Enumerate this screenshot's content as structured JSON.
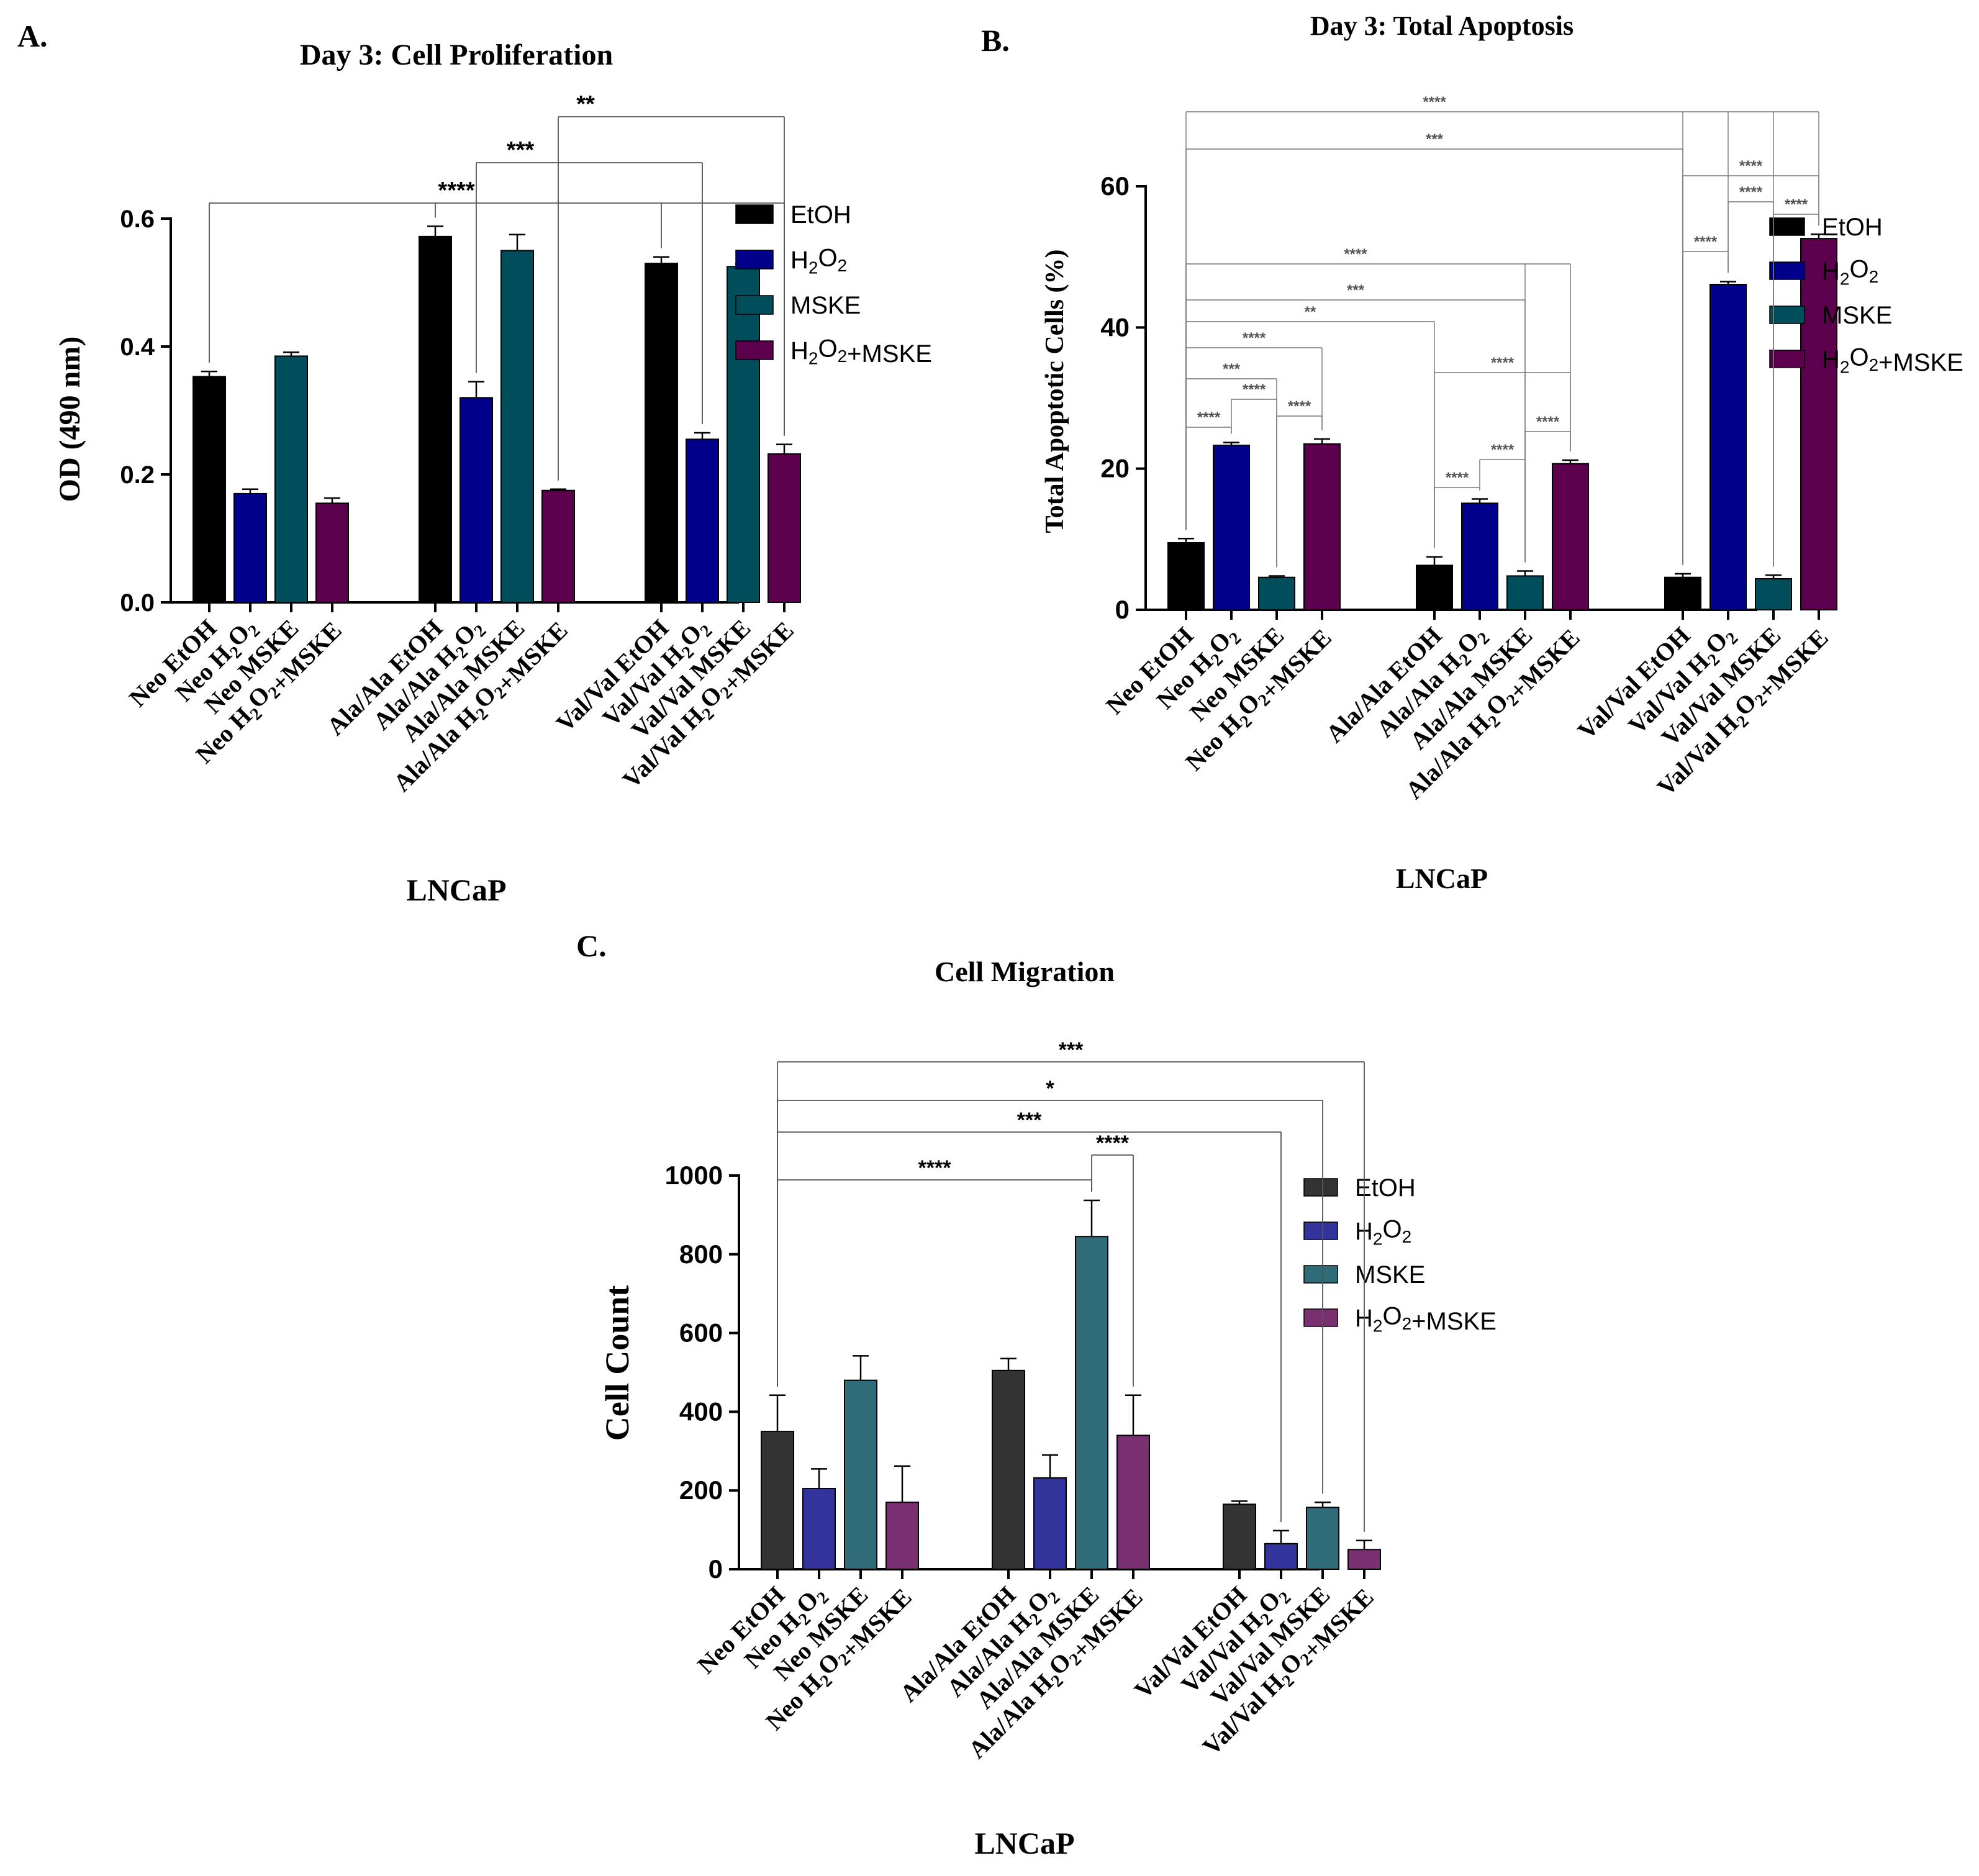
{
  "figure": {
    "palette": {
      "etoh": "#000000",
      "h2o2": "#00008b",
      "mske": "#004d5c",
      "h2o2_mske": "#5c004d",
      "etoh_c": "#333333",
      "h2o2_c": "#33339c",
      "mske_c": "#2f6b78",
      "h2o2_mske_c": "#7a2f70"
    }
  },
  "chart_data": [
    {
      "panel": "A.",
      "type": "bar",
      "title": "Day 3: Cell Proliferation",
      "ylabel": "OD  (490 nm)",
      "xlabel": "LNCaP",
      "ylim": [
        0,
        0.6
      ],
      "yticks": [
        "0.0",
        "0.2",
        "0.4",
        "0.6"
      ],
      "legend": [
        "EtOH",
        "H2O2",
        "MSKE",
        "H2O2+MSKE"
      ],
      "legend_position": "right",
      "categories": [
        "Neo EtOH",
        "Neo H2O2",
        "Neo MSKE",
        "Neo H2O2+MSKE",
        "Ala/Ala EtOH",
        "Ala/Ala H2O2",
        "Ala/Ala MSKE",
        "Ala/Ala H2O2+MSKE",
        "Val/Val EtOH",
        "Val/Val H2O2",
        "Val/Val MSKE",
        "Val/Val H2O2+MSKE"
      ],
      "series_index": [
        0,
        1,
        2,
        3,
        0,
        1,
        2,
        3,
        0,
        1,
        2,
        3
      ],
      "values": [
        0.353,
        0.17,
        0.385,
        0.155,
        0.572,
        0.32,
        0.55,
        0.175,
        0.53,
        0.255,
        0.525,
        0.232
      ],
      "errors": [
        0.008,
        0.007,
        0.006,
        0.008,
        0.016,
        0.025,
        0.025,
        0.002,
        0.01,
        0.01,
        0.004,
        0.015
      ],
      "significance": [
        {
          "label": "****",
          "from": 0,
          "to": [
            4,
            8,
            11
          ]
        },
        {
          "label": "***",
          "from": 5,
          "to": [
            9
          ]
        },
        {
          "label": "**",
          "from": 7,
          "to": [
            11
          ]
        }
      ]
    },
    {
      "panel": "B.",
      "type": "bar",
      "title": "Day 3: Total Apoptosis",
      "ylabel": "Total Apoptotic Cells  (%)",
      "xlabel": "LNCaP",
      "ylim": [
        0,
        60
      ],
      "yticks": [
        "0",
        "20",
        "40",
        "60"
      ],
      "legend": [
        "EtOH",
        "H2O2",
        "MSKE",
        "H2O2+MSKE"
      ],
      "legend_position": "right",
      "categories": [
        "Neo EtOH",
        "Neo H2O2",
        "Neo MSKE",
        "Neo H2O2+MSKE",
        "Ala/Ala EtOH",
        "Ala/Ala H2O2",
        "Ala/Ala MSKE",
        "Ala/Ala H2O2+MSKE",
        "Val/Val EtOH",
        "Val/Val H2O2",
        "Val/Val MSKE",
        "Val/Val H2O2+MSKE"
      ],
      "series_index": [
        0,
        1,
        2,
        3,
        0,
        1,
        2,
        3,
        0,
        1,
        2,
        3
      ],
      "values": [
        9.5,
        23.3,
        4.6,
        23.5,
        6.3,
        15.1,
        4.8,
        20.7,
        4.6,
        46.1,
        4.4,
        52.6
      ],
      "errors": [
        0.6,
        0.4,
        0.2,
        0.7,
        1.2,
        0.6,
        0.7,
        0.5,
        0.5,
        0.4,
        0.5,
        0.6
      ],
      "significance": [
        {
          "label": "****",
          "from": 0,
          "to": [
            8,
            9,
            10,
            11
          ]
        },
        {
          "label": "***",
          "from": 0,
          "to": [
            8
          ]
        },
        {
          "label": "****",
          "from": 8,
          "to": [
            11
          ]
        },
        {
          "label": "****",
          "from": 9,
          "to": [
            10
          ]
        },
        {
          "label": "****",
          "from": 10,
          "to": [
            11
          ]
        },
        {
          "label": "****",
          "from": 8,
          "to": [
            9
          ]
        },
        {
          "label": "****",
          "from": 0,
          "to": [
            6,
            7
          ]
        },
        {
          "label": "***",
          "from": 0,
          "to": [
            6
          ]
        },
        {
          "label": "**",
          "from": 0,
          "to": [
            4
          ]
        },
        {
          "label": "****",
          "from": 0,
          "to": [
            3
          ]
        },
        {
          "label": "****",
          "from": 4,
          "to": [
            7
          ]
        },
        {
          "label": "***",
          "from": 0,
          "to": [
            2
          ]
        },
        {
          "label": "****",
          "from": 1,
          "to": [
            2
          ]
        },
        {
          "label": "****",
          "from": 2,
          "to": [
            3
          ]
        },
        {
          "label": "****",
          "from": 0,
          "to": [
            1
          ]
        },
        {
          "label": "****",
          "from": 6,
          "to": [
            7
          ]
        },
        {
          "label": "****",
          "from": 5,
          "to": [
            6
          ]
        },
        {
          "label": "****",
          "from": 4,
          "to": [
            5
          ]
        }
      ]
    },
    {
      "panel": "C.",
      "type": "bar",
      "title": "Cell Migration",
      "ylabel": "Cell Count",
      "xlabel": "LNCaP",
      "ylim": [
        0,
        1000
      ],
      "yticks": [
        "0",
        "200",
        "400",
        "600",
        "800",
        "1000"
      ],
      "legend": [
        "EtOH",
        "H2O2",
        "MSKE",
        "H2O2+MSKE"
      ],
      "legend_position": "right",
      "categories": [
        "Neo EtOH",
        "Neo H2O2",
        "Neo MSKE",
        "Neo H2O2+MSKE",
        "Ala/Ala EtOH",
        "Ala/Ala H2O2",
        "Ala/Ala MSKE",
        "Ala/Ala H2O2+MSKE",
        "Val/Val EtOH",
        "Val/Val H2O2",
        "Val/Val MSKE",
        "Val/Val H2O2+MSKE"
      ],
      "series_index": [
        0,
        1,
        2,
        3,
        0,
        1,
        2,
        3,
        0,
        1,
        2,
        3
      ],
      "values": [
        350,
        205,
        480,
        170,
        505,
        232,
        845,
        340,
        165,
        65,
        157,
        50
      ],
      "errors": [
        92,
        50,
        62,
        92,
        30,
        58,
        92,
        102,
        8,
        33,
        13,
        23
      ],
      "significance": [
        {
          "label": "***",
          "from": 0,
          "to": [
            11
          ]
        },
        {
          "label": "*",
          "from": 0,
          "to": [
            10
          ]
        },
        {
          "label": "***",
          "from": 0,
          "to": [
            9
          ]
        },
        {
          "label": "****",
          "from": 6,
          "to": [
            7
          ]
        },
        {
          "label": "****",
          "from": 0,
          "to": [
            6
          ]
        }
      ]
    }
  ]
}
